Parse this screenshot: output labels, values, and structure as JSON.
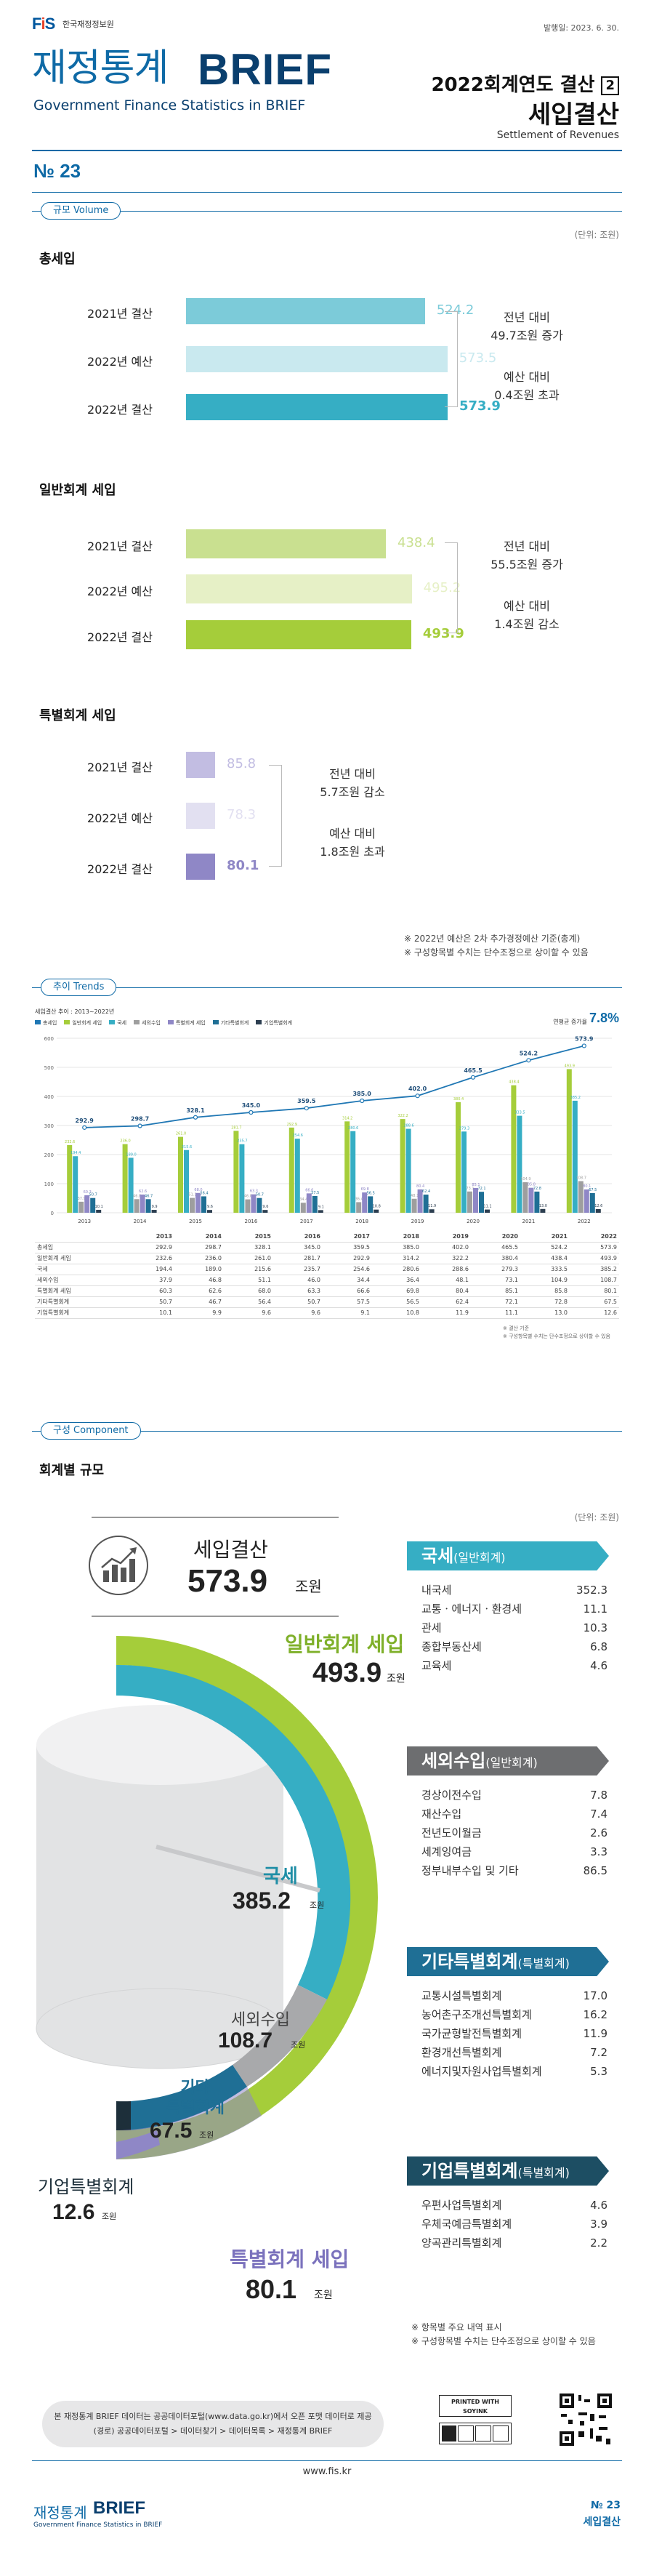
{
  "header": {
    "logo": "FIS",
    "org": "한국재정정보원",
    "date": "발행일: 2023. 6. 30.",
    "title_ko": "재정통계",
    "title_brief": "BRIEF",
    "subtitle_en": "Government Finance Statistics in BRIEF",
    "issue_title": "2022회계연도 결산",
    "issue_box": "2",
    "issue_main": "세입결산",
    "issue_en": "Settlement of Revenues",
    "issue_no": "№ 23"
  },
  "volume": {
    "pill": "규모 Volume",
    "unit": "(단위: 조원)",
    "groups": [
      {
        "title": "총세입",
        "bars": [
          {
            "label": "2021년 결산",
            "value": 524.2,
            "color": "#7ccbd9"
          },
          {
            "label": "2022년 예산",
            "value": 573.5,
            "color": "#c9e9ef"
          },
          {
            "label": "2022년 결산",
            "value": 573.9,
            "color": "#36aec4"
          }
        ],
        "notes": [
          "전년 대비",
          "49.7조원 증가",
          "예산 대비",
          "0.4조원 초과"
        ]
      },
      {
        "title": "일반회계 세입",
        "bars": [
          {
            "label": "2021년 결산",
            "value": 438.4,
            "color": "#c9e090"
          },
          {
            "label": "2022년 예산",
            "value": 495.2,
            "color": "#e6f0c6"
          },
          {
            "label": "2022년 결산",
            "value": 493.9,
            "color": "#a5cd3a"
          }
        ],
        "notes": [
          "전년 대비",
          "55.5조원 증가",
          "예산 대비",
          "1.4조원 감소"
        ]
      },
      {
        "title": "특별회계 세입",
        "bars": [
          {
            "label": "2021년 결산",
            "value": 85.8,
            "color": "#c2bde2"
          },
          {
            "label": "2022년 예산",
            "value": 78.3,
            "color": "#e2e0f1"
          },
          {
            "label": "2022년 결산",
            "value": 80.1,
            "color": "#8f87c6"
          }
        ],
        "notes": [
          "전년 대비",
          "5.7조원 감소",
          "예산 대비",
          "1.8조원 초과"
        ]
      }
    ],
    "footnotes": [
      "※ 2022년 예산은 2차 추가경정예산 기준(총계)",
      "※ 구성항목별 수치는 단수조정으로 상이할 수 있음"
    ]
  },
  "trends": {
    "pill": "추이 Trends",
    "chart_title": "세입결산 추이 : 2013~2022년",
    "legend": [
      "총세입",
      "일반회계 세입",
      "국세",
      "세외수입",
      "특별회계 세입",
      "기타특별회계",
      "기업특별회계"
    ],
    "cagr_label": "연평균 증가율",
    "cagr_value": "7.8%",
    "unit": "(단위: 조원)",
    "table_rows": [
      [
        "",
        "2013",
        "2014",
        "2015",
        "2016",
        "2017",
        "2018",
        "2019",
        "2020",
        "2021",
        "2022"
      ],
      [
        "총세입",
        "292.9",
        "298.7",
        "328.1",
        "345.0",
        "359.5",
        "385.0",
        "402.0",
        "465.5",
        "524.2",
        "573.9"
      ],
      [
        "일반회계 세입",
        "232.6",
        "236.0",
        "261.0",
        "281.7",
        "292.9",
        "314.2",
        "322.2",
        "380.4",
        "438.4",
        "493.9"
      ],
      [
        "국세",
        "194.4",
        "189.0",
        "215.6",
        "235.7",
        "254.6",
        "280.6",
        "288.6",
        "279.3",
        "333.5",
        "385.2"
      ],
      [
        "세외수입",
        "37.9",
        "46.8",
        "51.1",
        "46.0",
        "34.4",
        "36.4",
        "48.1",
        "73.1",
        "104.9",
        "108.7"
      ],
      [
        "특별회계 세입",
        "60.3",
        "62.6",
        "68.0",
        "63.3",
        "66.6",
        "69.8",
        "80.4",
        "85.1",
        "85.8",
        "80.1"
      ],
      [
        "기타특별회계",
        "50.7",
        "46.7",
        "56.4",
        "50.7",
        "57.5",
        "56.5",
        "62.4",
        "72.1",
        "72.8",
        "67.5"
      ],
      [
        "기업특별회계",
        "10.1",
        "9.9",
        "9.6",
        "9.6",
        "9.1",
        "10.8",
        "11.9",
        "11.1",
        "13.0",
        "12.6"
      ]
    ],
    "table_notes": [
      "※ 결산 기준",
      "※ 구성항목별 수치는 단수조정으로 상이할 수 있음"
    ]
  },
  "chart_data": {
    "type": "bar",
    "title": "세입결산 추이 : 2013~2022년",
    "ylim": [
      0,
      600
    ],
    "categories": [
      "2013",
      "2014",
      "2015",
      "2016",
      "2017",
      "2018",
      "2019",
      "2020",
      "2021",
      "2022"
    ],
    "series": [
      {
        "name": "총세입",
        "kind": "line",
        "color": "#1f77b4",
        "values": [
          292.9,
          298.7,
          328.1,
          345.0,
          359.5,
          385.0,
          402.0,
          465.5,
          524.2,
          573.9
        ]
      },
      {
        "name": "일반회계 세입",
        "color": "#a5cd3a",
        "values": [
          232.6,
          236.0,
          261.0,
          281.7,
          292.9,
          314.2,
          322.2,
          380.4,
          438.4,
          493.9
        ]
      },
      {
        "name": "국세",
        "color": "#36aec4",
        "values": [
          194.4,
          189.0,
          215.6,
          235.7,
          254.6,
          280.6,
          288.6,
          279.3,
          333.5,
          385.2
        ]
      },
      {
        "name": "세외수입",
        "color": "#9e9e9e",
        "values": [
          37.9,
          46.8,
          51.1,
          46.0,
          34.4,
          36.4,
          48.1,
          73.1,
          104.9,
          108.7
        ]
      },
      {
        "name": "특별회계 세입",
        "color": "#8f87c6",
        "values": [
          60.3,
          62.6,
          68.0,
          63.3,
          66.6,
          69.8,
          80.4,
          85.1,
          85.8,
          80.1
        ]
      },
      {
        "name": "기타특별회계",
        "color": "#1f6f95",
        "values": [
          50.7,
          46.7,
          56.4,
          50.7,
          57.5,
          56.5,
          62.4,
          72.1,
          72.8,
          67.5
        ]
      },
      {
        "name": "기업특별회계",
        "color": "#2c3e50",
        "values": [
          10.1,
          9.9,
          9.6,
          9.6,
          9.1,
          10.8,
          11.9,
          11.1,
          13.0,
          12.6
        ]
      }
    ]
  },
  "component": {
    "pill": "구성 Component",
    "section": "회계별 규모",
    "unit": "(단위: 조원)",
    "total_label": "세입결산",
    "total_value": "573.9",
    "unit_word": "조원",
    "donut_labels": [
      {
        "name": "일반회계 세입",
        "value": "493.9"
      },
      {
        "name": "국세",
        "value": "385.2"
      },
      {
        "name": "세외수입",
        "value": "108.7"
      },
      {
        "name": "기타\n특별회계",
        "value": "67.5"
      },
      {
        "name": "기업특별회계",
        "value": "12.6"
      },
      {
        "name": "특별회계 세입",
        "value": "80.1"
      }
    ],
    "panels": [
      {
        "title": "국세",
        "sub": "(일반회계)",
        "color": "#36aec4",
        "items": [
          [
            "내국세",
            "352.3"
          ],
          [
            "교통ㆍ에너지ㆍ환경세",
            "11.1"
          ],
          [
            "관세",
            "10.3"
          ],
          [
            "종합부동산세",
            "6.8"
          ],
          [
            "교육세",
            "4.6"
          ]
        ]
      },
      {
        "title": "세외수입",
        "sub": "(일반회계)",
        "color": "#6d6e70",
        "items": [
          [
            "경상이전수입",
            "7.8"
          ],
          [
            "재산수입",
            "7.4"
          ],
          [
            "전년도이월금",
            "2.6"
          ],
          [
            "세계잉여금",
            "3.3"
          ],
          [
            "정부내부수입 및 기타",
            "86.5"
          ]
        ]
      },
      {
        "title": "기타특별회계",
        "sub": "(특별회계)",
        "color": "#1f6f95",
        "items": [
          [
            "교통시설특별회계",
            "17.0"
          ],
          [
            "농어촌구조개선특별회계",
            "16.2"
          ],
          [
            "국가균형발전특별회계",
            "11.9"
          ],
          [
            "환경개선특별회계",
            "7.2"
          ],
          [
            "에너지및자원사업특별회계",
            "5.3"
          ]
        ]
      },
      {
        "title": "기업특별회계",
        "sub": "(특별회계)",
        "color": "#1d4e63",
        "items": [
          [
            "우편사업특별회계",
            "4.6"
          ],
          [
            "우체국예금특별회계",
            "3.9"
          ],
          [
            "양곡관리특별회계",
            "2.2"
          ]
        ]
      }
    ],
    "footnotes": [
      "※ 항목별 주요 내역 표시",
      "※ 구성항목별 수치는 단수조정으로 상이할 수 있음"
    ]
  },
  "footer": {
    "note_line1": "본 재정통계 BRIEF 데이터는 공공데이터포털(www.data.go.kr)에서 오픈 포맷 데이터로 제공",
    "note_line2": "(경로) 공공데이터포털 > 데이터찾기 > 데이터목록 > 재정통계 BRIEF",
    "soy": "PRINTED WITH SOYINK",
    "url": "www.fis.kr",
    "brand_ko": "재정통계",
    "brand_brief": "BRIEF",
    "brand_en": "Government Finance Statistics in BRIEF",
    "no": "№ 23",
    "topic": "세입결산"
  }
}
